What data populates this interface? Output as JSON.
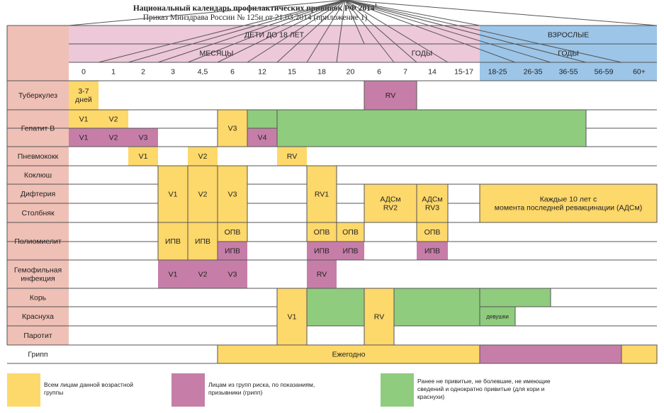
{
  "header": {
    "title": "Национальный календарь профилактических прививок РФ 2014",
    "title_sup": "1",
    "subtitle": "Приказ Минздрава России № 125н от 21.03.2014 (приложение 1)"
  },
  "colors": {
    "header_pink": "#ecc8d8",
    "header_blue": "#9cc5e8",
    "row_label_bg": "#efc0b6",
    "yellow": "#fdd86a",
    "purple": "#c67ea8",
    "green": "#8fcc7e",
    "grid_line": "#555555"
  },
  "groups": {
    "children": "ДЕТИ ДО 18 ЛЕТ",
    "adults": "ВЗРОСЛЫЕ",
    "months": "МЕСЯЦЫ",
    "years": "ГОДЫ",
    "adult_years": "ГОДЫ"
  },
  "columns": [
    "0",
    "1",
    "2",
    "3",
    "4,5",
    "6",
    "12",
    "15",
    "18",
    "20",
    "6",
    "7",
    "14",
    "15-17",
    "18-25",
    "26-35",
    "36-55",
    "56-59",
    "60+"
  ],
  "rows": [
    "Туберкулез",
    "Гепатит В",
    "Пневмококк",
    "Коклюш",
    "Дифтерия",
    "Столбняк",
    "Полиомиелит",
    "Гемофильная инфекция",
    "Корь",
    "Краснуха",
    "Паротит",
    "Грипп"
  ],
  "cells": {
    "tb_v": "3-7 дней",
    "tb_rv": "RV",
    "hep_v1": "V1",
    "hep_v2": "V2",
    "hep_v3": "V3",
    "hep_r1": "V1",
    "hep_r2": "V2",
    "hep_r3": "V3",
    "hep_r4": "V4",
    "pn_v1": "V1",
    "pn_v2": "V2",
    "pn_rv": "RV",
    "dtp_v1": "V1",
    "dtp_v2": "V2",
    "dtp_v3": "V3",
    "dtp_rv1": "RV1",
    "ads_rv2": "АДСм RV2",
    "ads_rv3": "АДСм RV3",
    "adult_ads": "Каждые 10 лет с момента последней ревакцинации (АДСм)",
    "polio_ipv1": "ИПВ",
    "polio_ipv2": "ИПВ",
    "polio_opv1": "ОПВ",
    "polio_opv2": "ОПВ",
    "polio_opv3": "ОПВ",
    "polio_opv4": "ОПВ",
    "polio_ipv_r1": "ИПВ",
    "polio_ipv_r2": "ИПВ",
    "polio_ipv_r3": "ИПВ",
    "polio_ipv_r4": "ИПВ",
    "hib_v1": "V1",
    "hib_v2": "V2",
    "hib_v3": "V3",
    "hib_rv": "RV",
    "mmr_v1": "V1",
    "mmr_rv": "RV",
    "rub_girls": "девушки",
    "flu": "Ежегодно"
  },
  "legend": {
    "yellow": "Всем лицам данной возрастной группы",
    "purple": "Лицам из групп риска, по показаниям, призывники (грипп)",
    "green": "Ранее не привитые, не болевшие, не имеющие сведений и однократно привитые (для кори и краснухи)"
  }
}
